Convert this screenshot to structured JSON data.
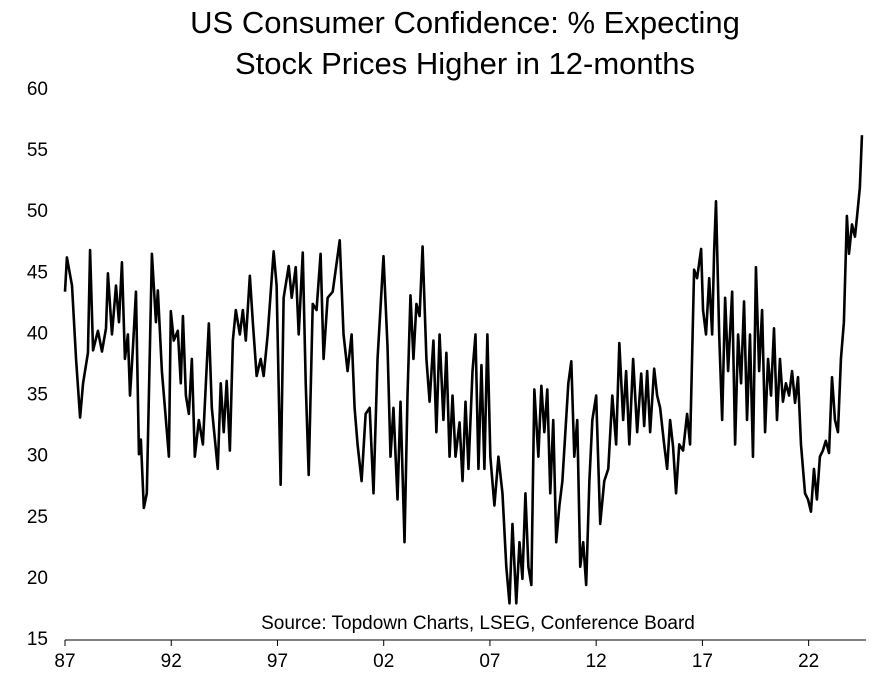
{
  "chart_data": {
    "type": "line",
    "title": [
      "US Consumer Confidence: % Expecting",
      "Stock Prices Higher in 12-months"
    ],
    "source": "Source: Topdown Charts, LSEG, Conference Board",
    "color": "#000000",
    "xlim": [
      1987,
      2024.7
    ],
    "xticks": [
      {
        "value": 1987,
        "label": "87"
      },
      {
        "value": 1992,
        "label": "92"
      },
      {
        "value": 1997,
        "label": "97"
      },
      {
        "value": 2002,
        "label": "02"
      },
      {
        "value": 2007,
        "label": "07"
      },
      {
        "value": 2012,
        "label": "12"
      },
      {
        "value": 2017,
        "label": "17"
      },
      {
        "value": 2022,
        "label": "22"
      }
    ],
    "ylim": [
      15,
      60
    ],
    "yticks": [
      15,
      20,
      25,
      30,
      35,
      40,
      45,
      50,
      55,
      60
    ],
    "grid": false,
    "x": [
      1987.0,
      1987.09,
      1987.33,
      1987.52,
      1987.71,
      1987.85,
      1988.08,
      1988.18,
      1988.32,
      1988.55,
      1988.74,
      1988.93,
      1989.02,
      1989.21,
      1989.4,
      1989.54,
      1989.68,
      1989.82,
      1989.96,
      1990.06,
      1990.2,
      1990.34,
      1990.48,
      1990.57,
      1990.71,
      1990.85,
      1991.09,
      1991.28,
      1991.37,
      1991.56,
      1991.75,
      1991.89,
      1991.98,
      1992.12,
      1992.31,
      1992.45,
      1992.55,
      1992.69,
      1992.83,
      1992.97,
      1993.11,
      1993.3,
      1993.49,
      1993.63,
      1993.77,
      1993.91,
      1994.19,
      1994.33,
      1994.47,
      1994.61,
      1994.76,
      1994.9,
      1995.04,
      1995.23,
      1995.37,
      1995.51,
      1995.7,
      1995.84,
      1996.02,
      1996.21,
      1996.35,
      1996.54,
      1996.82,
      1996.96,
      1997.15,
      1997.29,
      1997.53,
      1997.67,
      1997.86,
      1998.0,
      1998.19,
      1998.33,
      1998.47,
      1998.66,
      1998.84,
      1999.03,
      1999.17,
      1999.36,
      1999.6,
      1999.93,
      2000.11,
      2000.3,
      2000.49,
      2000.63,
      2000.77,
      2000.96,
      2001.15,
      2001.34,
      2001.52,
      2001.71,
      2001.99,
      2002.18,
      2002.32,
      2002.46,
      2002.65,
      2002.79,
      2002.98,
      2003.12,
      2003.26,
      2003.4,
      2003.54,
      2003.69,
      2003.83,
      2004.01,
      2004.16,
      2004.34,
      2004.48,
      2004.63,
      2004.81,
      2004.95,
      2005.1,
      2005.24,
      2005.38,
      2005.57,
      2005.71,
      2005.85,
      2005.99,
      2006.18,
      2006.32,
      2006.46,
      2006.6,
      2006.74,
      2006.88,
      2007.02,
      2007.21,
      2007.4,
      2007.59,
      2007.77,
      2007.92,
      2008.06,
      2008.24,
      2008.39,
      2008.53,
      2008.67,
      2008.81,
      2008.95,
      2009.09,
      2009.28,
      2009.42,
      2009.56,
      2009.7,
      2009.84,
      2009.98,
      2010.12,
      2010.27,
      2010.41,
      2010.55,
      2010.69,
      2010.83,
      2010.97,
      2011.11,
      2011.25,
      2011.39,
      2011.53,
      2011.68,
      2011.82,
      2012.0,
      2012.19,
      2012.38,
      2012.57,
      2012.76,
      2012.94,
      2013.09,
      2013.27,
      2013.41,
      2013.56,
      2013.74,
      2013.93,
      2014.12,
      2014.26,
      2014.4,
      2014.54,
      2014.73,
      2014.87,
      2015.01,
      2015.2,
      2015.34,
      2015.48,
      2015.62,
      2015.76,
      2015.91,
      2016.09,
      2016.28,
      2016.42,
      2016.61,
      2016.75,
      2016.94,
      2017.03,
      2017.17,
      2017.32,
      2017.46,
      2017.55,
      2017.64,
      2017.79,
      2017.93,
      2018.07,
      2018.21,
      2018.4,
      2018.54,
      2018.68,
      2018.82,
      2018.96,
      2019.1,
      2019.24,
      2019.38,
      2019.52,
      2019.67,
      2019.81,
      2019.95,
      2020.09,
      2020.23,
      2020.37,
      2020.51,
      2020.65,
      2020.79,
      2020.93,
      2021.08,
      2021.22,
      2021.36,
      2021.5,
      2021.64,
      2021.83,
      2021.97,
      2022.11,
      2022.25,
      2022.39,
      2022.53,
      2022.67,
      2022.81,
      2022.96,
      2023.1,
      2023.24,
      2023.38,
      2023.52,
      2023.66,
      2023.8,
      2023.9,
      2024.04,
      2024.18,
      2024.27,
      2024.41,
      2024.51
    ],
    "values": [
      43.5,
      46.3,
      44,
      38,
      33.2,
      36,
      38.5,
      46.9,
      38.7,
      40.3,
      38.6,
      40.5,
      45,
      40,
      44,
      41,
      45.9,
      38,
      40,
      35,
      39,
      43.5,
      30.2,
      31.4,
      25.8,
      27,
      46.6,
      41,
      43.6,
      37,
      33,
      30,
      41.9,
      39.5,
      40.3,
      36,
      41.5,
      35,
      33.5,
      38,
      30,
      33,
      31,
      36,
      40.9,
      34,
      29,
      36,
      32,
      36.2,
      30.5,
      39.5,
      42,
      40,
      42,
      39.5,
      44.8,
      41,
      36.6,
      38,
      36.6,
      40,
      46.8,
      44,
      27.7,
      43,
      45.6,
      43,
      45.5,
      40,
      46.7,
      36,
      28.5,
      42.5,
      42,
      46.6,
      38,
      43,
      43.5,
      47.7,
      40,
      37,
      40,
      34,
      31,
      28,
      33.5,
      34,
      27,
      38,
      46.4,
      39,
      30,
      34,
      26.5,
      34.5,
      23,
      35,
      43.2,
      38,
      42.5,
      41.5,
      47.2,
      38,
      34.5,
      39.5,
      32,
      40,
      33,
      38.5,
      30,
      35,
      30,
      32.8,
      28,
      34.5,
      29,
      37,
      40,
      29,
      37.5,
      29,
      40,
      30,
      26,
      30,
      27,
      21,
      18,
      24.5,
      18,
      23,
      20,
      27,
      21,
      19.5,
      35.5,
      30,
      35.8,
      32,
      35.5,
      27,
      33,
      23,
      26,
      28,
      32,
      36,
      37.8,
      30,
      33,
      21,
      23,
      19.5,
      28,
      33,
      35,
      24.5,
      28,
      29,
      35,
      31,
      39.3,
      33,
      37,
      31,
      38,
      32,
      36.8,
      32.5,
      37,
      32,
      37.2,
      35,
      34,
      31,
      29,
      33,
      30.8,
      27,
      31,
      30.5,
      33.5,
      31,
      45.3,
      44.6,
      47,
      42,
      40,
      44.6,
      40,
      46.7,
      50.9,
      40,
      33,
      43,
      37,
      43.5,
      31,
      40,
      36,
      42.7,
      33,
      40,
      30,
      45.5,
      37,
      42,
      32,
      38,
      35,
      40.5,
      33,
      38,
      34.5,
      36,
      35,
      37,
      34.4,
      36.5,
      31,
      27,
      26.5,
      25.5,
      29,
      26.5,
      30,
      30.5,
      31.3,
      30.3,
      36.5,
      33,
      32,
      38,
      41,
      49.7,
      46.6,
      49,
      48,
      49.5,
      52,
      56.3
    ]
  }
}
